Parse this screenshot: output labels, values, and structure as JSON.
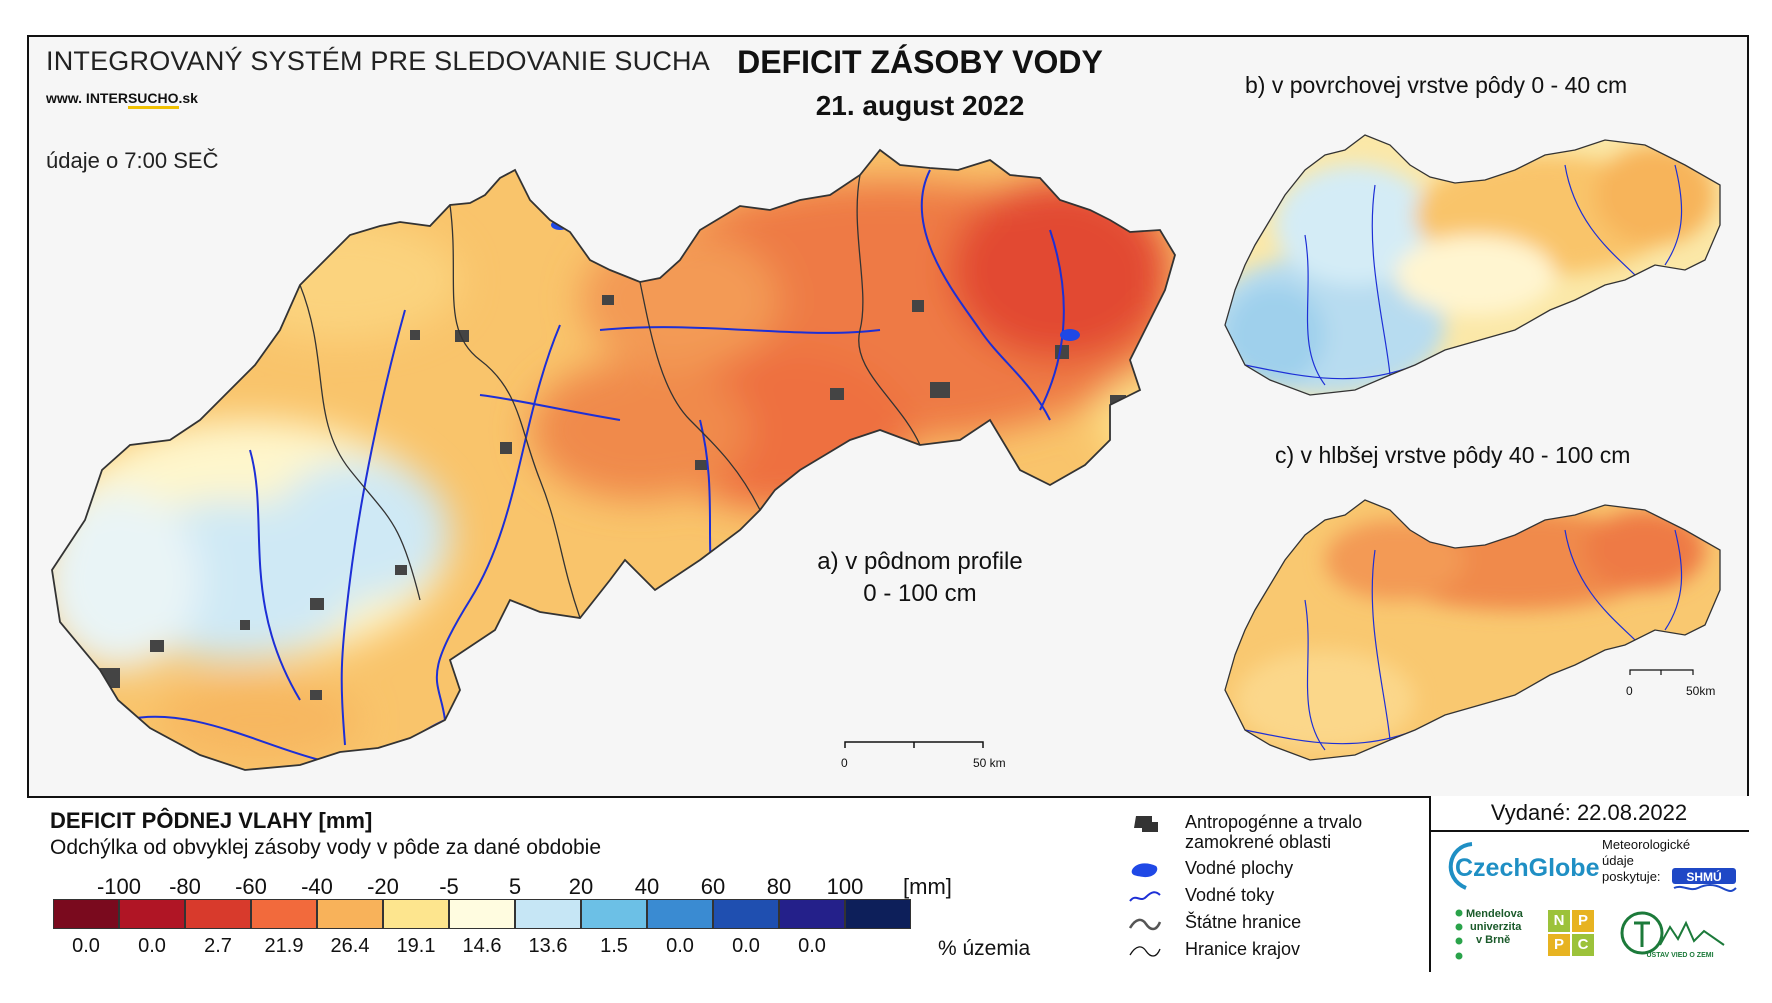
{
  "header": {
    "system_title": "INTEGROVANÝ SYSTÉM PRE SLEDOVANIE SUCHA",
    "url_prefix": "www. INTER",
    "url_mid": "SUCHO",
    "url_suffix": ".sk",
    "data_note": "údaje o 7:00 SEČ",
    "title": "DEFICIT ZÁSOBY VODY",
    "date": "21. august 2022"
  },
  "maps": {
    "a_line1": "a) v pôdnom profile",
    "a_line2": "0 - 100 cm",
    "b_label": "b) v povrchovej vrstve pôdy 0 - 40 cm",
    "c_label": "c) v hlbšej vrstve pôdy 40 - 100 cm",
    "scale_main": {
      "zero": "0",
      "end": "50 km"
    },
    "scale_inset": {
      "zero": "0",
      "end": "50km"
    }
  },
  "legend": {
    "title": "DEFICIT PÔDNEJ VLAHY [mm]",
    "subtitle": "Odchýlka od obvyklej zásoby vody v pôde za dané obdobie",
    "unit": "[mm]",
    "pct_unit": "% územia",
    "ticks": [
      "-100",
      "-80",
      "-60",
      "-40",
      "-20",
      "-5",
      "5",
      "20",
      "40",
      "60",
      "80",
      "100"
    ],
    "classes": [
      {
        "color": "#7a0a1e",
        "pct": "0.0"
      },
      {
        "color": "#b01525",
        "pct": "0.0"
      },
      {
        "color": "#d83a2c",
        "pct": "2.7"
      },
      {
        "color": "#f26a3c",
        "pct": "21.9"
      },
      {
        "color": "#f8b25a",
        "pct": "26.4"
      },
      {
        "color": "#fde58e",
        "pct": "19.1"
      },
      {
        "color": "#fffce0",
        "pct": "14.6"
      },
      {
        "color": "#c6e6f5",
        "pct": "13.6"
      },
      {
        "color": "#6cc0e6",
        "pct": "1.5"
      },
      {
        "color": "#3a8bd2",
        "pct": "0.0"
      },
      {
        "color": "#1f4fb0",
        "pct": "0.0"
      },
      {
        "color": "#24208a",
        "pct": "0.0"
      },
      {
        "color": "#0d1f5a",
        "pct": ""
      }
    ]
  },
  "symbols": [
    {
      "icon": "urban-area-icon",
      "text1": "Antropogénne a trvalo",
      "text2": "zamokrené oblasti"
    },
    {
      "icon": "water-body-icon",
      "text1": "Vodné plochy"
    },
    {
      "icon": "river-icon",
      "text1": "Vodné toky"
    },
    {
      "icon": "state-border-icon",
      "text1": "Štátne hranice"
    },
    {
      "icon": "region-border-icon",
      "text1": "Hranice krajov"
    }
  ],
  "issued": "Vydané: 22.08.2022",
  "logos": {
    "czechglobe": "CzechGlobe",
    "met_line1": "Meteorologické",
    "met_line2": "údaje",
    "met_line3": "poskytuje:",
    "shmu": "SHMÚ",
    "mendel_1": "Mendelova",
    "mendel_2": "univerzita",
    "mendel_3": "v Brně",
    "nppc": [
      "N",
      "P",
      "P",
      "C"
    ],
    "uvz": "ÚSTAV VIED O ZEMI"
  }
}
